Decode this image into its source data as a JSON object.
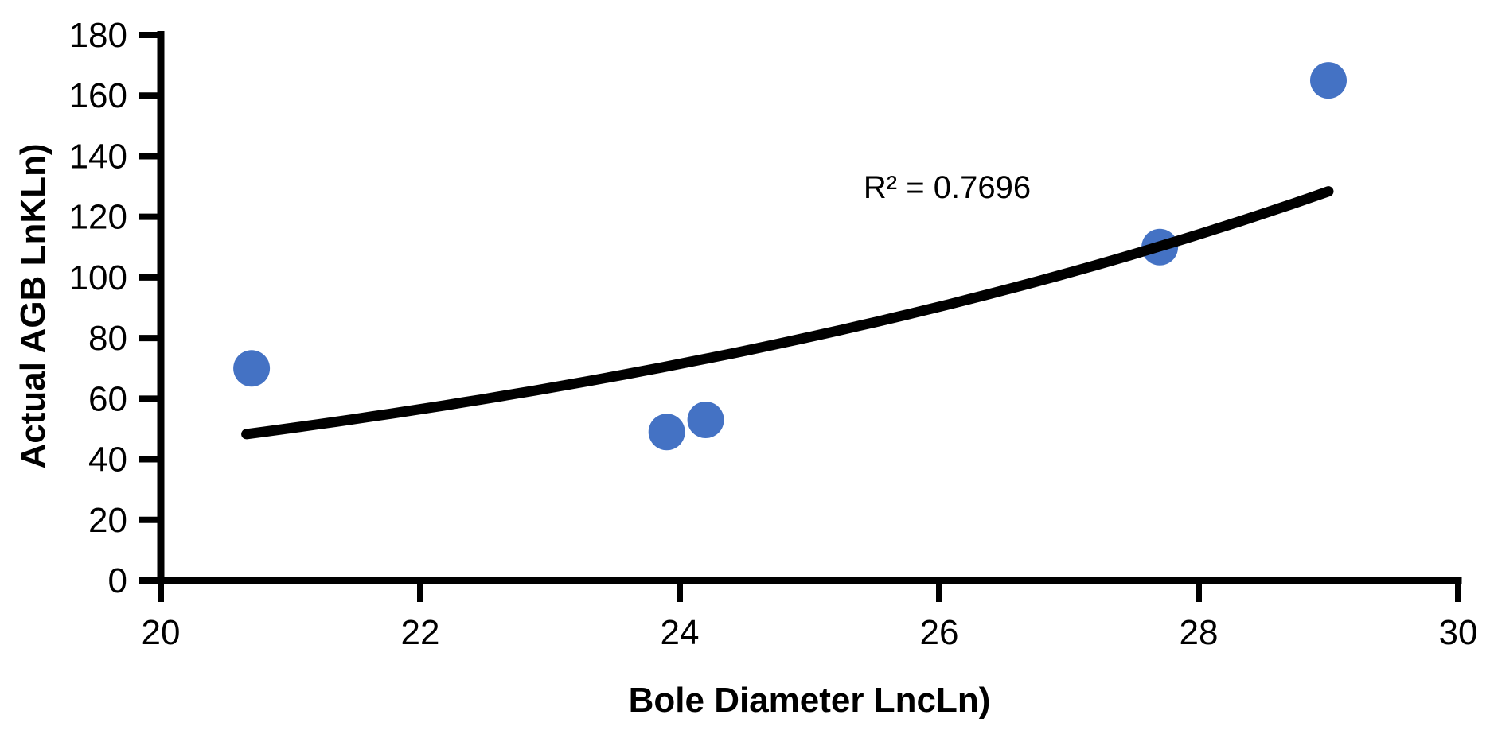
{
  "chart_data": {
    "type": "scatter",
    "title": "",
    "xlabel": "Bole Diameter LncLn)",
    "ylabel": "Actual AGB LnKLn)",
    "annotation": "R² = 0.7696",
    "r_squared": 0.7696,
    "xlim": [
      20,
      30
    ],
    "ylim": [
      0,
      180
    ],
    "x_ticks": [
      20,
      22,
      24,
      26,
      28,
      30
    ],
    "y_ticks": [
      0,
      20,
      40,
      60,
      80,
      100,
      120,
      140,
      160,
      180
    ],
    "grid": false,
    "legend": "none",
    "points": [
      {
        "x": 20.7,
        "y": 70
      },
      {
        "x": 23.9,
        "y": 49
      },
      {
        "x": 24.2,
        "y": 53
      },
      {
        "x": 27.7,
        "y": 110
      },
      {
        "x": 29.0,
        "y": 165
      }
    ],
    "trendline": {
      "type": "exponential",
      "a": 4.29,
      "b": 0.1172,
      "x_start": 20.66,
      "x_end": 29.0
    },
    "marker_color": "#4472C4",
    "trendline_color": "#000000",
    "axis_color": "#000000"
  }
}
